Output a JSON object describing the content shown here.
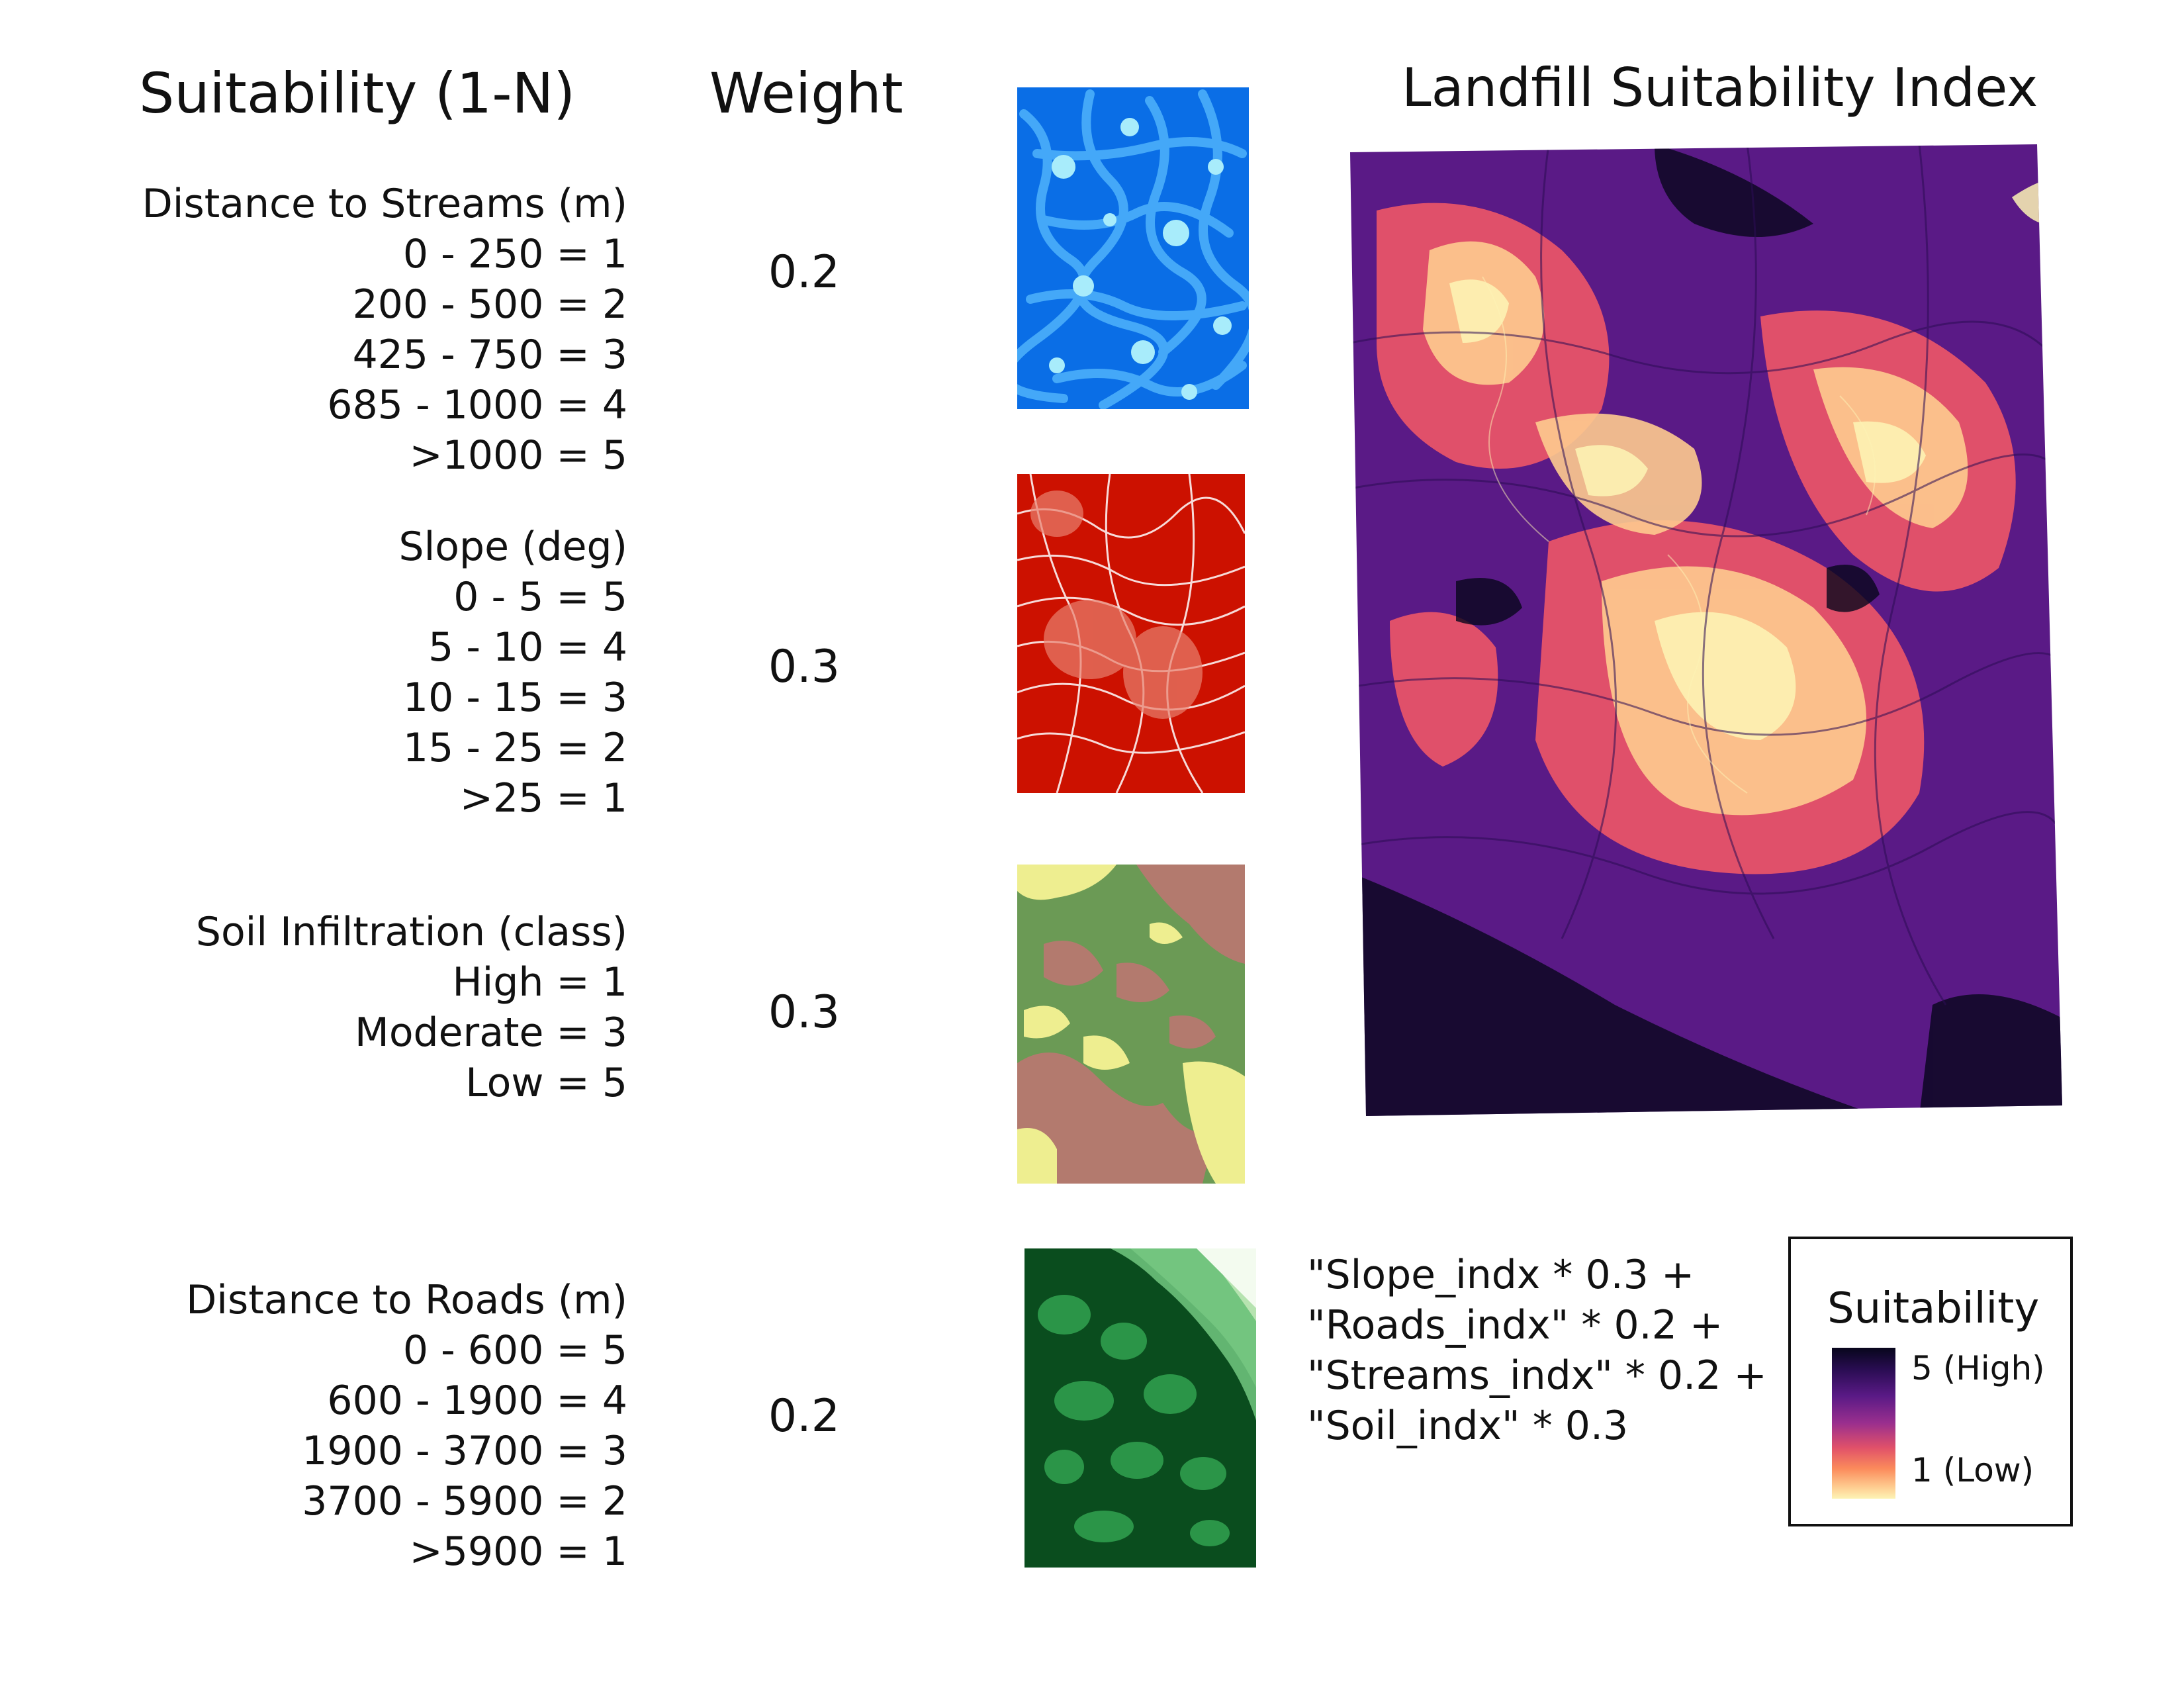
{
  "headers": {
    "suitability": "Suitability (1-N)",
    "weight": "Weight",
    "map_title": "Landfill Suitability Index"
  },
  "factors": [
    {
      "title": "Distance to Streams (m)",
      "classes": [
        "0 - 250 = 1",
        "200 - 500 = 2",
        "425 - 750 = 3",
        "685 - 1000 = 4",
        ">1000 = 5"
      ],
      "weight": "0.2",
      "thumb_colors": [
        "#0a6ee6",
        "#44a8f8",
        "#a8ecfb"
      ]
    },
    {
      "title": "Slope (deg)",
      "classes": [
        "0 - 5 = 5",
        "5 - 10 = 4",
        "10 - 15 = 3",
        "15 - 25 = 2",
        ">25 = 1"
      ],
      "weight": "0.3",
      "thumb_colors": [
        "#cc1100",
        "#e8806e",
        "#ffffff"
      ]
    },
    {
      "title": "Soil Infiltration (class)",
      "classes": [
        "High = 1",
        "Moderate = 3",
        "Low = 5"
      ],
      "weight": "0.3",
      "thumb_colors": [
        "#6b9a55",
        "#b37a6e",
        "#eeee90"
      ]
    },
    {
      "title": "Distance to Roads (m)",
      "classes": [
        "0 - 600 = 5",
        "600 - 1900 =  4",
        "1900 - 3700 = 3",
        "3700 - 5900 = 2",
        ">5900 = 1"
      ],
      "weight": "0.2",
      "thumb_colors": [
        "#0a4d1e",
        "#2b9548",
        "#6cc17a",
        "#b6e3b0",
        "#f3fbef"
      ]
    }
  ],
  "formula": [
    "\"Slope_indx * 0.3 +",
    "\"Roads_indx\" * 0.2 +",
    "\"Streams_indx\" * 0.2 +",
    "\"Soil_indx\" * 0.3"
  ],
  "legend": {
    "title": "Suitability",
    "high_label": "5 (High)",
    "low_label": "1 (Low)",
    "ramp_colors": [
      "#07061c",
      "#5a1a86",
      "#e0506a",
      "#fecb8f",
      "#fdf4b5"
    ]
  }
}
